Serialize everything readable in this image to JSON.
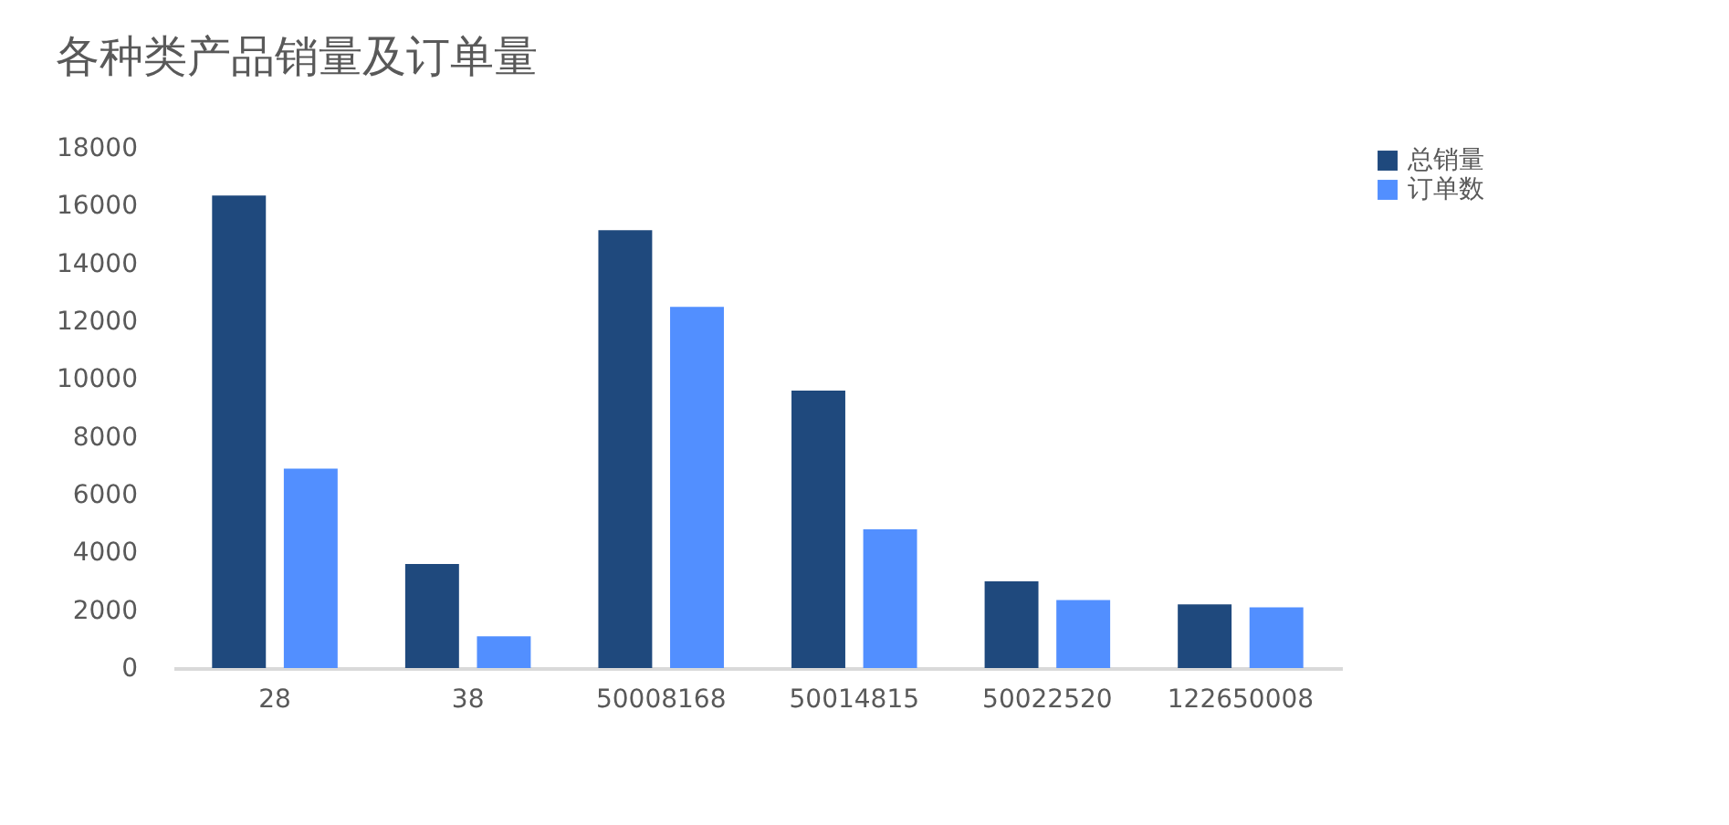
{
  "chart_data": {
    "type": "bar",
    "title": "各种类产品销量及订单量",
    "categories": [
      "28",
      "38",
      "50008168",
      "50014815",
      "50022520",
      "122650008"
    ],
    "series": [
      {
        "name": "总销量",
        "color": "#1f497d",
        "values": [
          16350,
          3600,
          15150,
          9600,
          3000,
          2200
        ]
      },
      {
        "name": "订单数",
        "color": "#528fff",
        "values": [
          6900,
          1100,
          12500,
          4800,
          2350,
          2100
        ]
      }
    ],
    "ylim": [
      0,
      18000
    ],
    "yticks": [
      0,
      2000,
      4000,
      6000,
      8000,
      10000,
      12000,
      14000,
      16000,
      18000
    ],
    "grid": false,
    "legend": "right"
  }
}
